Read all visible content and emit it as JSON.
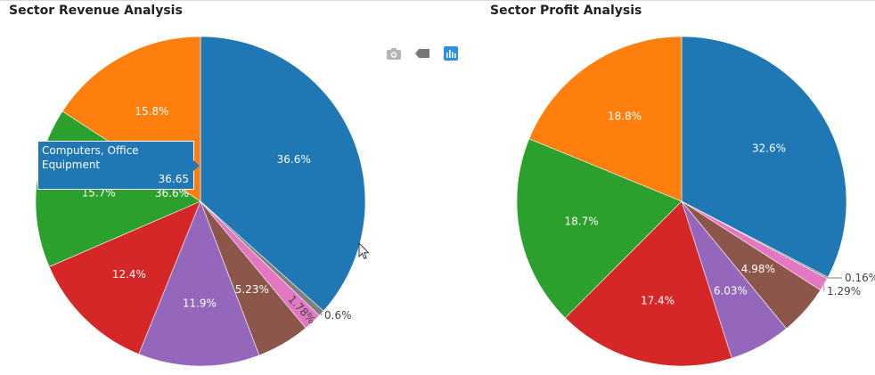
{
  "modebar": {
    "buttons": [
      {
        "name": "download-plot-button",
        "icon": "camera-icon"
      },
      {
        "name": "produced-with-plotly-button",
        "icon": "tag-icon"
      },
      {
        "name": "plotly-logo-button",
        "icon": "bar-chart-icon"
      }
    ]
  },
  "tooltip": {
    "label": "Computers, Office Equipment",
    "value": "36.65",
    "percent": "36.6%"
  },
  "colors": [
    "#1f77b4",
    "#ff7f0e",
    "#2ca02c",
    "#d62728",
    "#9467bd",
    "#8c564b",
    "#e377c2",
    "#7f7f7f"
  ],
  "chart_data": [
    {
      "type": "pie",
      "title": "Sector Revenue Analysis",
      "labels": [
        "Computers, Office Equipment"
      ],
      "slices": [
        {
          "percent": 36.6,
          "label": "36.6%",
          "color": "#1f77b4"
        },
        {
          "percent": 0.6,
          "label": "0.6%",
          "color": "#7f7f7f"
        },
        {
          "percent": 1.78,
          "label": "1.78%",
          "color": "#e377c2"
        },
        {
          "percent": 5.23,
          "label": "5.23%",
          "color": "#8c564b"
        },
        {
          "percent": 11.9,
          "label": "11.9%",
          "color": "#9467bd"
        },
        {
          "percent": 12.4,
          "label": "12.4%",
          "color": "#d62728"
        },
        {
          "percent": 15.7,
          "label": "15.7%",
          "color": "#2ca02c"
        },
        {
          "percent": 15.8,
          "label": "15.8%",
          "color": "#ff7f0e"
        }
      ],
      "direction": "clockwise",
      "legend": "none"
    },
    {
      "type": "pie",
      "title": "Sector Profit Analysis",
      "slices": [
        {
          "percent": 32.6,
          "label": "32.6%",
          "color": "#1f77b4"
        },
        {
          "percent": 0.16,
          "label": "0.16%",
          "color": "#7f7f7f"
        },
        {
          "percent": 1.29,
          "label": "1.29%",
          "color": "#e377c2"
        },
        {
          "percent": 4.98,
          "label": "4.98%",
          "color": "#8c564b"
        },
        {
          "percent": 6.03,
          "label": "6.03%",
          "color": "#9467bd"
        },
        {
          "percent": 17.4,
          "label": "17.4%",
          "color": "#d62728"
        },
        {
          "percent": 18.7,
          "label": "18.7%",
          "color": "#2ca02c"
        },
        {
          "percent": 18.8,
          "label": "18.8%",
          "color": "#ff7f0e"
        }
      ],
      "direction": "clockwise",
      "legend": "none"
    }
  ]
}
